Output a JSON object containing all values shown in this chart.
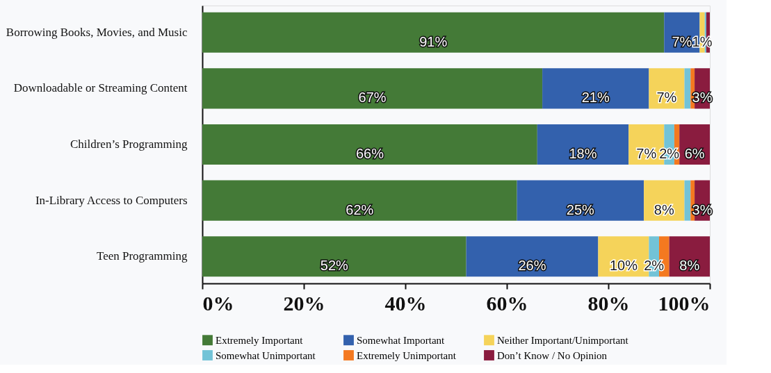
{
  "chart_data": {
    "type": "bar",
    "orientation": "horizontal",
    "stacked": true,
    "categories": [
      "Borrowing Books, Movies, and Music",
      "Downloadable or Streaming Content",
      "Children’s Programming",
      "In-Library Access to Computers",
      "Teen Programming"
    ],
    "series": [
      {
        "name": "Extremely Important",
        "color": "#447a37",
        "values": [
          91,
          67,
          66,
          62,
          52
        ],
        "value_labels": [
          "91%",
          "67%",
          "66%",
          "62%",
          "52%"
        ]
      },
      {
        "name": "Somewhat Important",
        "color": "#3361ad",
        "values": [
          7,
          21,
          18,
          25,
          26
        ],
        "value_labels": [
          "7%",
          "21%",
          "18%",
          "25%",
          "26%"
        ]
      },
      {
        "name": "Neither Important/Unimportant",
        "color": "#f5d35a",
        "values": [
          1,
          7,
          7,
          8,
          10
        ],
        "value_labels": [
          "1%",
          "7%",
          "7%",
          "8%",
          "10%"
        ]
      },
      {
        "name": "Somewhat Unimportant",
        "color": "#72c3d7",
        "values": [
          0.3,
          1.2,
          2,
          1.2,
          2
        ],
        "value_labels": [
          null,
          null,
          "2%",
          null,
          "2%"
        ]
      },
      {
        "name": "Extremely Unimportant",
        "color": "#f47920",
        "values": [
          0,
          0.8,
          1,
          0.8,
          2
        ],
        "value_labels": [
          null,
          null,
          null,
          null,
          null
        ]
      },
      {
        "name": "Don’t Know / No Opinion",
        "color": "#8a1c3f",
        "values": [
          0.7,
          3,
          6,
          3,
          8
        ],
        "value_labels": [
          null,
          "3%",
          "6%",
          "3%",
          "8%"
        ]
      }
    ],
    "xlim": [
      0,
      100
    ],
    "xticks": [
      {
        "value": 0,
        "label": "0%"
      },
      {
        "value": 20,
        "label": "20%"
      },
      {
        "value": 40,
        "label": "40%"
      },
      {
        "value": 60,
        "label": "60%"
      },
      {
        "value": 80,
        "label": "80%"
      },
      {
        "value": 100,
        "label": "100%"
      }
    ],
    "grid": false,
    "legend": "bottom"
  }
}
